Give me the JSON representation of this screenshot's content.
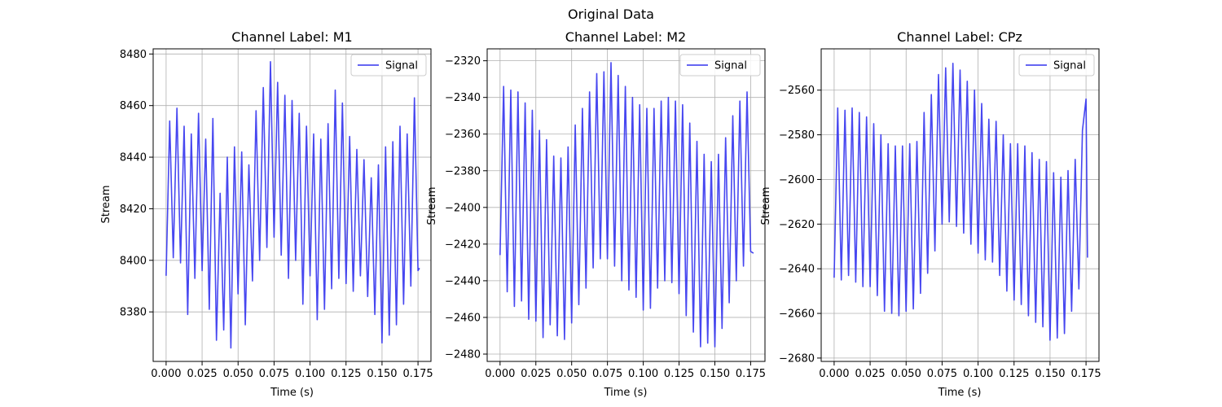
{
  "figure": {
    "suptitle": "Original Data"
  },
  "chart_data": [
    {
      "type": "line",
      "title": "Channel Label: M1",
      "xlabel": "Time (s)",
      "ylabel": "Stream",
      "xlim": [
        -0.009,
        0.184
      ],
      "ylim": [
        8360.8,
        8482.0
      ],
      "xticks": [
        0.0,
        0.025,
        0.05,
        0.075,
        0.1,
        0.125,
        0.15,
        0.175
      ],
      "xtick_labels": [
        "0.000",
        "0.025",
        "0.050",
        "0.075",
        "0.100",
        "0.125",
        "0.150",
        "0.175"
      ],
      "yticks": [
        8380,
        8400,
        8420,
        8440,
        8460,
        8480
      ],
      "ytick_labels": [
        "8380",
        "8400",
        "8420",
        "8440",
        "8460",
        "8480"
      ],
      "grid": true,
      "legend": "upper right",
      "series": [
        {
          "name": "Signal",
          "color": "#3333ee",
          "x": [
            0.0,
            0.0025,
            0.005,
            0.0075,
            0.01,
            0.0125,
            0.015,
            0.0175,
            0.02,
            0.0225,
            0.025,
            0.0275,
            0.03,
            0.0325,
            0.035,
            0.0375,
            0.04,
            0.0425,
            0.045,
            0.0475,
            0.05,
            0.0525,
            0.055,
            0.0575,
            0.06,
            0.0625,
            0.065,
            0.0675,
            0.07,
            0.0725,
            0.075,
            0.0775,
            0.08,
            0.0825,
            0.085,
            0.0875,
            0.09,
            0.0925,
            0.095,
            0.0975,
            0.1,
            0.1025,
            0.105,
            0.1075,
            0.11,
            0.1125,
            0.115,
            0.1175,
            0.12,
            0.1225,
            0.125,
            0.1275,
            0.13,
            0.1325,
            0.135,
            0.1375,
            0.14,
            0.1425,
            0.145,
            0.1475,
            0.15,
            0.1525,
            0.155,
            0.1575,
            0.16,
            0.1625,
            0.165,
            0.1675,
            0.17,
            0.1725,
            0.175,
            0.176
          ],
          "values": [
            8394,
            8454,
            8401,
            8459,
            8399,
            8452,
            8379,
            8449,
            8393,
            8457,
            8396,
            8447,
            8381,
            8455,
            8369,
            8426,
            8373,
            8440,
            8366,
            8444,
            8387,
            8442,
            8375,
            8437,
            8392,
            8458,
            8400,
            8467,
            8405,
            8477,
            8409,
            8469,
            8402,
            8464,
            8393,
            8462,
            8400,
            8457,
            8383,
            8452,
            8394,
            8449,
            8377,
            8447,
            8381,
            8453,
            8389,
            8466,
            8393,
            8461,
            8391,
            8448,
            8388,
            8443,
            8394,
            8439,
            8386,
            8432,
            8379,
            8437,
            8368,
            8444,
            8371,
            8446,
            8375,
            8452,
            8383,
            8449,
            8390,
            8463,
            8396,
            8397
          ]
        }
      ]
    },
    {
      "type": "line",
      "title": "Channel Label: M2",
      "xlabel": "Time (s)",
      "ylabel": "Stream",
      "xlim": [
        -0.009,
        0.185
      ],
      "ylim": [
        -2484.0,
        -2313.5
      ],
      "xticks": [
        0.0,
        0.025,
        0.05,
        0.075,
        0.1,
        0.125,
        0.15,
        0.175
      ],
      "xtick_labels": [
        "0.000",
        "0.025",
        "0.050",
        "0.075",
        "0.100",
        "0.125",
        "0.150",
        "0.175"
      ],
      "yticks": [
        -2480,
        -2460,
        -2440,
        -2420,
        -2400,
        -2380,
        -2360,
        -2340,
        -2320
      ],
      "ytick_labels": [
        "−2480",
        "−2460",
        "−2440",
        "−2420",
        "−2400",
        "−2380",
        "−2360",
        "−2340",
        "−2320"
      ],
      "grid": true,
      "legend": "upper right",
      "series": [
        {
          "name": "Signal",
          "color": "#3333ee",
          "x": [
            0.0,
            0.0025,
            0.005,
            0.0075,
            0.01,
            0.0125,
            0.015,
            0.0175,
            0.02,
            0.0225,
            0.025,
            0.0275,
            0.03,
            0.0325,
            0.035,
            0.0375,
            0.04,
            0.0425,
            0.045,
            0.0475,
            0.05,
            0.0525,
            0.055,
            0.0575,
            0.06,
            0.0625,
            0.065,
            0.0675,
            0.07,
            0.0725,
            0.075,
            0.0775,
            0.08,
            0.0825,
            0.085,
            0.0875,
            0.09,
            0.0925,
            0.095,
            0.0975,
            0.1,
            0.1025,
            0.105,
            0.1075,
            0.11,
            0.1125,
            0.115,
            0.1175,
            0.12,
            0.1225,
            0.125,
            0.1275,
            0.13,
            0.1325,
            0.135,
            0.1375,
            0.14,
            0.1425,
            0.145,
            0.1475,
            0.15,
            0.1525,
            0.155,
            0.1575,
            0.16,
            0.1625,
            0.165,
            0.1675,
            0.17,
            0.1725,
            0.175,
            0.177
          ],
          "values": [
            -2426,
            -2334,
            -2446,
            -2336,
            -2454,
            -2337,
            -2451,
            -2343,
            -2461,
            -2347,
            -2462,
            -2358,
            -2471,
            -2363,
            -2464,
            -2372,
            -2470,
            -2373,
            -2472,
            -2367,
            -2463,
            -2355,
            -2453,
            -2346,
            -2444,
            -2337,
            -2433,
            -2327,
            -2428,
            -2326,
            -2428,
            -2321,
            -2432,
            -2328,
            -2440,
            -2334,
            -2445,
            -2340,
            -2449,
            -2344,
            -2456,
            -2346,
            -2455,
            -2346,
            -2444,
            -2342,
            -2440,
            -2340,
            -2441,
            -2342,
            -2447,
            -2344,
            -2459,
            -2354,
            -2468,
            -2364,
            -2476,
            -2371,
            -2474,
            -2375,
            -2476,
            -2371,
            -2466,
            -2362,
            -2452,
            -2350,
            -2440,
            -2342,
            -2432,
            -2337,
            -2424,
            -2425
          ]
        }
      ]
    },
    {
      "type": "line",
      "title": "Channel Label: CPz",
      "xlabel": "Time (s)",
      "ylabel": "Stream",
      "xlim": [
        -0.009,
        0.184
      ],
      "ylim": [
        -2681.5,
        -2541.5
      ],
      "xticks": [
        0.0,
        0.025,
        0.05,
        0.075,
        0.1,
        0.125,
        0.15,
        0.175
      ],
      "xtick_labels": [
        "0.000",
        "0.025",
        "0.050",
        "0.075",
        "0.100",
        "0.125",
        "0.150",
        "0.175"
      ],
      "yticks": [
        -2680,
        -2660,
        -2640,
        -2620,
        -2600,
        -2580,
        -2560
      ],
      "ytick_labels": [
        "−2680",
        "−2660",
        "−2640",
        "−2620",
        "−2600",
        "−2580",
        "−2560"
      ],
      "grid": true,
      "legend": "upper right",
      "series": [
        {
          "name": "Signal",
          "color": "#3333ee",
          "x": [
            0.0,
            0.0025,
            0.005,
            0.0075,
            0.01,
            0.0125,
            0.015,
            0.0175,
            0.02,
            0.0225,
            0.025,
            0.0275,
            0.03,
            0.0325,
            0.035,
            0.0375,
            0.04,
            0.0425,
            0.045,
            0.0475,
            0.05,
            0.0525,
            0.055,
            0.0575,
            0.06,
            0.0625,
            0.065,
            0.0675,
            0.07,
            0.0725,
            0.075,
            0.0775,
            0.08,
            0.0825,
            0.085,
            0.0875,
            0.09,
            0.0925,
            0.095,
            0.0975,
            0.1,
            0.1025,
            0.105,
            0.1075,
            0.11,
            0.1125,
            0.115,
            0.1175,
            0.12,
            0.1225,
            0.125,
            0.1275,
            0.13,
            0.1325,
            0.135,
            0.1375,
            0.14,
            0.1425,
            0.145,
            0.1475,
            0.15,
            0.1525,
            0.155,
            0.1575,
            0.16,
            0.1625,
            0.165,
            0.1675,
            0.17,
            0.1725,
            0.175,
            0.176
          ],
          "values": [
            -2644,
            -2568,
            -2645,
            -2569,
            -2643,
            -2568,
            -2646,
            -2570,
            -2648,
            -2572,
            -2648,
            -2575,
            -2652,
            -2580,
            -2659,
            -2584,
            -2660,
            -2585,
            -2661,
            -2585,
            -2659,
            -2584,
            -2658,
            -2583,
            -2651,
            -2570,
            -2642,
            -2562,
            -2632,
            -2553,
            -2620,
            -2550,
            -2619,
            -2548,
            -2621,
            -2551,
            -2624,
            -2556,
            -2629,
            -2560,
            -2633,
            -2566,
            -2636,
            -2573,
            -2637,
            -2574,
            -2643,
            -2580,
            -2650,
            -2584,
            -2654,
            -2584,
            -2656,
            -2585,
            -2661,
            -2588,
            -2664,
            -2591,
            -2666,
            -2592,
            -2672,
            -2597,
            -2671,
            -2599,
            -2669,
            -2596,
            -2659,
            -2591,
            -2649,
            -2578,
            -2564,
            -2635
          ]
        }
      ]
    }
  ]
}
